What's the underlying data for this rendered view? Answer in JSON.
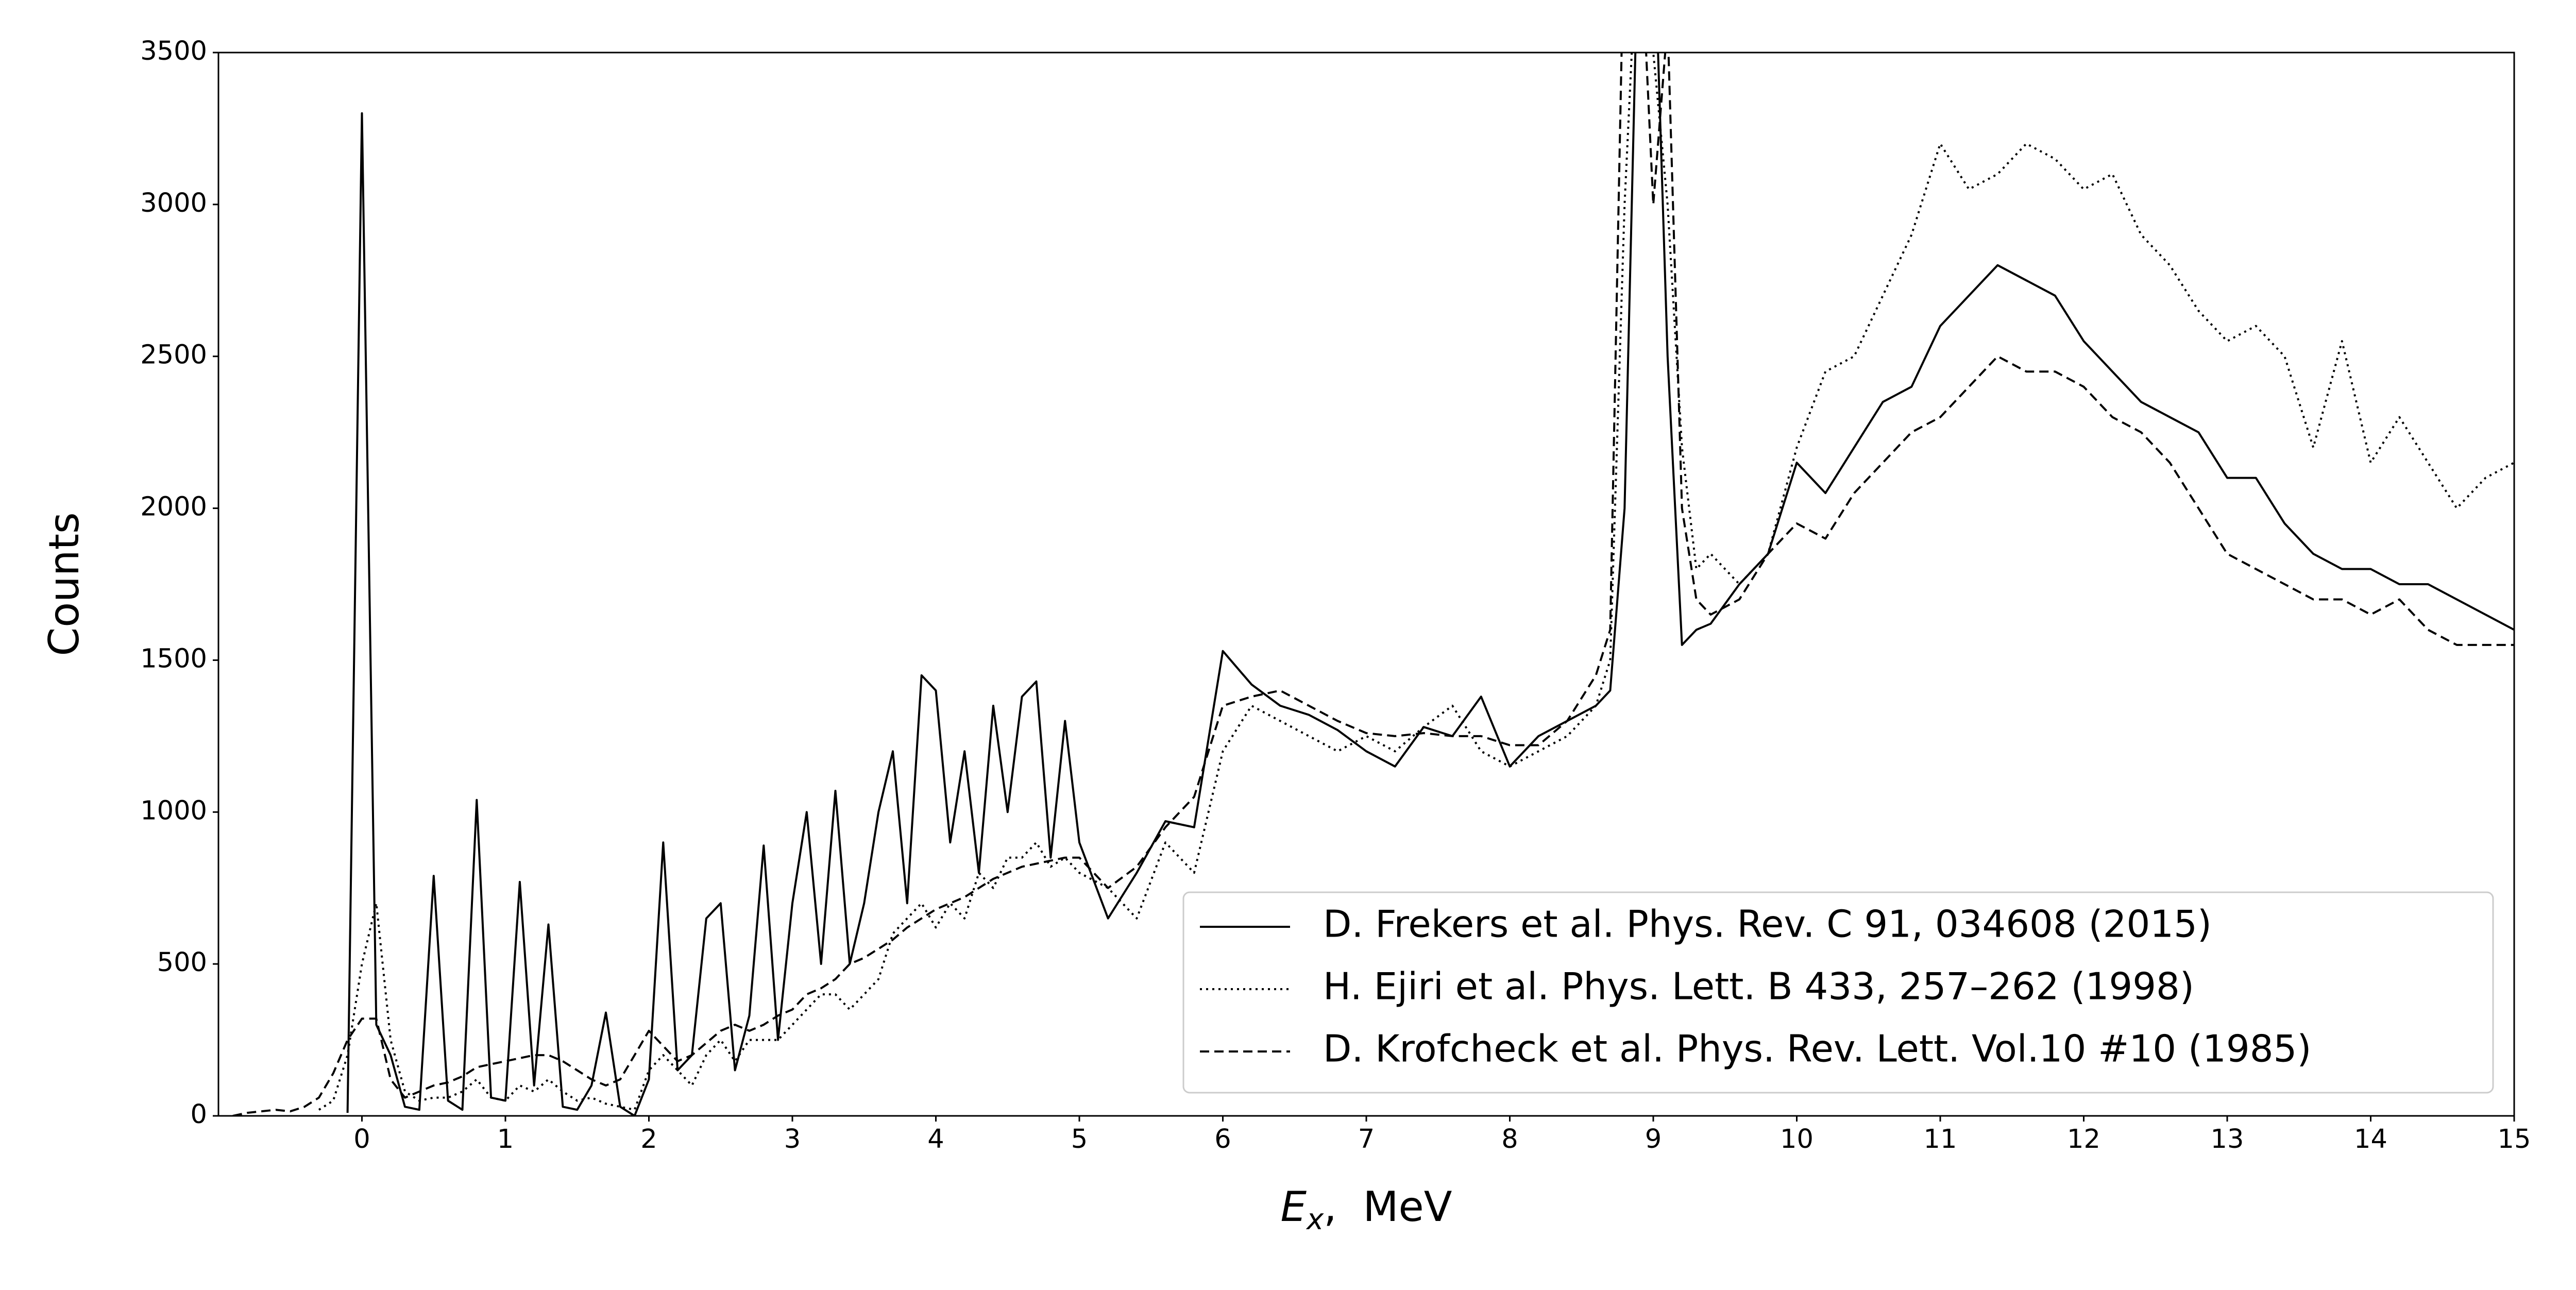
{
  "chart_data": {
    "type": "line",
    "ylabel": "Counts",
    "xlabel": [
      "E",
      "x",
      ",  MeV"
    ],
    "xlim": [
      -1,
      15
    ],
    "xticks": [
      0,
      1,
      2,
      3,
      4,
      5,
      6,
      7,
      8,
      9,
      10,
      11,
      12,
      13,
      14,
      15
    ],
    "ylim": [
      0,
      3500
    ],
    "yticks": [
      0,
      500,
      1000,
      1500,
      2000,
      2500,
      3000,
      3500
    ],
    "legend": "lower right",
    "x": [
      -0.9,
      -0.8,
      -0.7,
      -0.6,
      -0.5,
      -0.4,
      -0.3,
      -0.2,
      -0.1,
      0.0,
      0.1,
      0.2,
      0.3,
      0.4,
      0.5,
      0.6,
      0.7,
      0.8,
      0.9,
      1.0,
      1.1,
      1.2,
      1.3,
      1.4,
      1.5,
      1.6,
      1.7,
      1.8,
      1.9,
      2.0,
      2.1,
      2.2,
      2.3,
      2.4,
      2.5,
      2.6,
      2.7,
      2.8,
      2.9,
      3.0,
      3.1,
      3.2,
      3.3,
      3.4,
      3.5,
      3.6,
      3.7,
      3.8,
      3.9,
      4.0,
      4.1,
      4.2,
      4.3,
      4.4,
      4.5,
      4.6,
      4.7,
      4.8,
      4.9,
      5.0,
      5.2,
      5.4,
      5.6,
      5.8,
      6.0,
      6.2,
      6.4,
      6.6,
      6.8,
      7.0,
      7.2,
      7.4,
      7.6,
      7.8,
      8.0,
      8.2,
      8.4,
      8.6,
      8.7,
      8.8,
      8.9,
      9.0,
      9.1,
      9.2,
      9.3,
      9.4,
      9.6,
      9.8,
      10.0,
      10.2,
      10.4,
      10.6,
      10.8,
      11.0,
      11.2,
      11.4,
      11.6,
      11.8,
      12.0,
      12.2,
      12.4,
      12.6,
      12.8,
      13.0,
      13.2,
      13.4,
      13.6,
      13.8,
      14.0,
      14.2,
      14.4,
      14.6,
      14.8,
      15.0
    ],
    "series": [
      {
        "name": "D. Frekers et al. Phys. Rev. C 91, 034608 (2015)",
        "color": "#000000",
        "linestyle": "solid",
        "values": [
          null,
          null,
          null,
          null,
          null,
          null,
          null,
          null,
          10,
          3300,
          300,
          200,
          30,
          20,
          790,
          50,
          20,
          1040,
          60,
          50,
          770,
          100,
          630,
          30,
          20,
          100,
          340,
          30,
          0,
          120,
          900,
          150,
          200,
          650,
          700,
          150,
          330,
          890,
          250,
          700,
          1000,
          500,
          1070,
          500,
          700,
          1000,
          1200,
          700,
          1450,
          1400,
          900,
          1200,
          800,
          1350,
          1000,
          1380,
          1430,
          850,
          1300,
          900,
          650,
          800,
          970,
          950,
          1530,
          1420,
          1350,
          1320,
          1270,
          1200,
          1150,
          1280,
          1250,
          1380,
          1150,
          1250,
          1300,
          1350,
          1400,
          2000,
          4000,
          4000,
          2500,
          1550,
          1600,
          1620,
          1750,
          1850,
          2150,
          2050,
          2200,
          2350,
          2400,
          2600,
          2700,
          2800,
          2750,
          2700,
          2550,
          2450,
          2350,
          2300,
          2250,
          2100,
          2100,
          1950,
          1850,
          1800,
          1800,
          1750,
          1750,
          1700,
          1650,
          1600
        ]
      },
      {
        "name": "H. Ejiri et al. Phys. Lett. B 433, 257–262 (1998)",
        "color": "#000000",
        "linestyle": "dotted",
        "values": [
          null,
          null,
          null,
          null,
          null,
          null,
          20,
          50,
          200,
          500,
          700,
          250,
          80,
          50,
          60,
          60,
          80,
          120,
          60,
          50,
          100,
          80,
          120,
          80,
          50,
          60,
          40,
          30,
          20,
          150,
          200,
          150,
          100,
          200,
          250,
          180,
          250,
          250,
          250,
          300,
          350,
          400,
          400,
          350,
          400,
          450,
          600,
          650,
          700,
          620,
          700,
          650,
          800,
          750,
          850,
          850,
          900,
          820,
          850,
          800,
          750,
          650,
          900,
          800,
          1200,
          1350,
          1300,
          1250,
          1200,
          1250,
          1200,
          1280,
          1350,
          1200,
          1150,
          1200,
          1250,
          1350,
          1500,
          3000,
          4000,
          3500,
          3000,
          2200,
          1800,
          1850,
          1750,
          1850,
          2200,
          2450,
          2500,
          2700,
          2900,
          3200,
          3050,
          3100,
          3200,
          3150,
          3050,
          3100,
          2900,
          2800,
          2650,
          2550,
          2600,
          2500,
          2200,
          2550,
          2150,
          2300,
          2150,
          2000,
          2100,
          2150
        ]
      },
      {
        "name": "D. Krofcheck et al. Phys. Rev. Lett. Vol.10 #10 (1985)",
        "color": "#000000",
        "linestyle": "dashed",
        "values": [
          0,
          10,
          15,
          20,
          15,
          30,
          60,
          140,
          250,
          320,
          320,
          120,
          60,
          80,
          100,
          110,
          130,
          160,
          170,
          180,
          190,
          200,
          200,
          180,
          150,
          120,
          100,
          120,
          200,
          280,
          230,
          180,
          200,
          240,
          280,
          300,
          280,
          300,
          330,
          350,
          400,
          420,
          450,
          500,
          520,
          550,
          580,
          620,
          650,
          680,
          700,
          720,
          750,
          780,
          800,
          820,
          830,
          840,
          850,
          850,
          750,
          820,
          950,
          1050,
          1350,
          1380,
          1400,
          1350,
          1300,
          1260,
          1250,
          1260,
          1250,
          1250,
          1220,
          1220,
          1300,
          1450,
          1600,
          4000,
          4000,
          3000,
          3600,
          2000,
          1700,
          1650,
          1700,
          1850,
          1950,
          1900,
          2050,
          2150,
          2250,
          2300,
          2400,
          2500,
          2450,
          2450,
          2400,
          2300,
          2250,
          2150,
          2000,
          1850,
          1800,
          1750,
          1700,
          1700,
          1650,
          1700,
          1600,
          1550,
          1550,
          1550
        ]
      }
    ]
  }
}
